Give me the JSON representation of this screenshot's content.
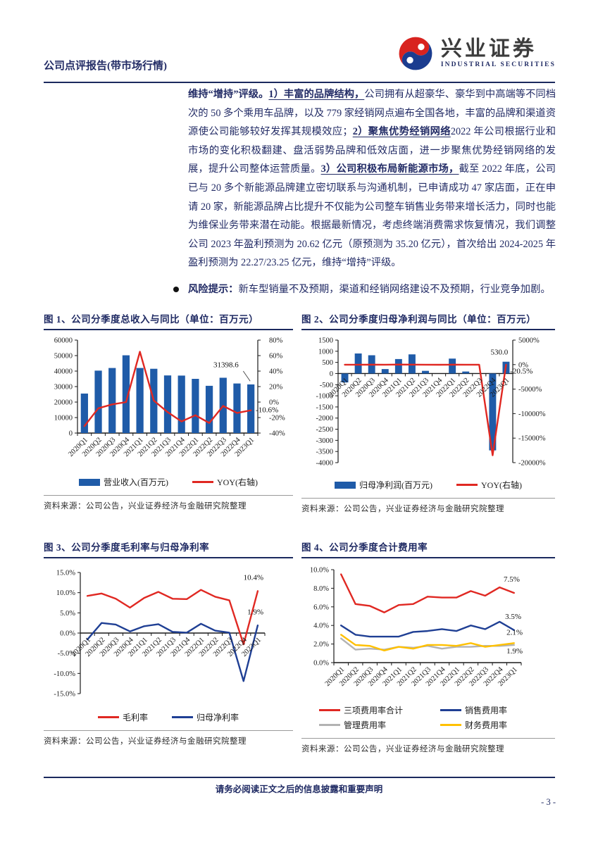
{
  "header": {
    "report_type": "公司点评报告(带市场行情)",
    "brand_cn": "兴业证券",
    "brand_en": "INDUSTRIAL SECURITIES"
  },
  "body": {
    "main_paragraph": [
      {
        "t": "维持“增持”评级。",
        "b": true
      },
      {
        "t": "1）丰富的品牌结构，",
        "b": true,
        "u": true
      },
      {
        "t": "公司拥有从超豪华、豪华到中高端等不同档次的 50 多个乘用车品牌，以及 779 家经销网点遍布全国各地，丰富的品牌和渠道资源使公司能够较好发挥其规模效应；"
      },
      {
        "t": "2）聚焦优势经销网络",
        "b": true,
        "u": true
      },
      {
        "t": "2022 年公司根据行业和市场的变化积极翻建、盘活弱势品牌和低效店面，进一步聚焦优势经销网络的发展，提升公司整体运营质量。"
      },
      {
        "t": "3）公司积极布局新能源市场，",
        "b": true,
        "u": true
      },
      {
        "t": "截至 2022 年底，公司已与 20 多个新能源品牌建立密切联系与沟通机制，已申请成功 47 家店面，正在申请 20 家，新能源品牌占比提升不仅能为公司整车销售业务带来增长活力，同时也能为维保业务带来潜在动能。根据最新情况，考虑终端消费需求恢复情况，我们调整公司 2023 年盈利预测为 20.62 亿元（原预测为 35.20 亿元），首次给出 2024-2025 年盈利预测为 22.27/23.25 亿元，维持“增持”评级。"
      }
    ],
    "risk_paragraph": [
      {
        "t": "风险提示：",
        "b": true
      },
      {
        "t": "新车型销量不及预期，渠道和经销网络建设不及预期，行业竞争加剧。"
      }
    ]
  },
  "chart_data": [
    {
      "type": "bar+line",
      "title": "图 1、公司分季度总收入与同比（单位：百万元）",
      "source": "资料来源：公司公告，兴业证券经济与金融研究院整理",
      "categories": [
        "2020Q1",
        "2020Q2",
        "2020Q3",
        "2020Q4",
        "2021Q1",
        "2021Q2",
        "2021Q3",
        "2021Q4",
        "2022Q1",
        "2022Q2",
        "2022Q3",
        "2022Q4",
        "2023Q1"
      ],
      "left_axis": {
        "min": 0,
        "max": 60000,
        "ticks": [
          "60000",
          "50000",
          "40000",
          "30000",
          "20000",
          "10000",
          "0"
        ]
      },
      "right_axis": {
        "min": -40,
        "max": 80,
        "ticks": [
          "80%",
          "60%",
          "40%",
          "20%",
          "0%",
          "-20%",
          "-40%"
        ]
      },
      "bars": {
        "name": "营业收入(百万元)",
        "color": "#1f5ba8",
        "values": [
          25500,
          40300,
          42000,
          50200,
          42000,
          41500,
          37200,
          37100,
          35000,
          30500,
          35700,
          32000,
          31398.6
        ]
      },
      "lines": [
        {
          "name": "YOY(右轴)",
          "color": "#e02822",
          "axis": "right",
          "values": [
            -31,
            -8,
            -3,
            0,
            65,
            2,
            -13,
            -25,
            -17,
            -27,
            -5,
            -14,
            -10.6
          ]
        }
      ],
      "annotations": [
        {
          "text": "31398.6",
          "xi": 9.3,
          "val": 42500,
          "axis": "left",
          "anchor": "start",
          "leader": {
            "x1i": 11.45,
            "v1": 40000,
            "x2i": 11.95,
            "v2": 33500
          }
        },
        {
          "text": "-10.6%",
          "xi": 12.35,
          "val": -13,
          "axis": "right",
          "anchor": "start"
        }
      ],
      "legend": [
        {
          "label": "营业收入(百万元)",
          "color": "#1f5ba8",
          "swatch": "bar"
        },
        {
          "label": "YOY(右轴)",
          "color": "#e02822",
          "swatch": "line"
        }
      ]
    },
    {
      "type": "bar+line",
      "title": "图 2、公司分季度归母净利润与同比（单位：百万元）",
      "source": "资料来源：公司公告，兴业证券经济与金融研究院整理",
      "categories": [
        "2020Q1",
        "2020Q2",
        "2020Q3",
        "2020Q4",
        "2021Q1",
        "2021Q2",
        "2021Q3",
        "2021Q4",
        "2022Q1",
        "2022Q2",
        "2022Q3",
        "2022Q4",
        "2023Q1"
      ],
      "left_axis": {
        "min": -4000,
        "max": 1500,
        "ticks": [
          "1500",
          "1000",
          "500",
          "0",
          "-500",
          "-1000",
          "-1500",
          "-2000",
          "-2500",
          "-3000",
          "-3500",
          "-4000"
        ]
      },
      "right_axis": {
        "min": -20000,
        "max": 5000,
        "ticks": [
          "5000%",
          "0%",
          "-5000%",
          "-10000%",
          "-15000%",
          "-20000%"
        ]
      },
      "bars": {
        "name": "归母净利润(百万元)",
        "color": "#1f5ba8",
        "values": [
          -400,
          900,
          820,
          200,
          650,
          860,
          120,
          0,
          670,
          90,
          0,
          -3450,
          530
        ]
      },
      "lines": [
        {
          "name": "YOY(右轴)",
          "color": "#e02822",
          "axis": "right",
          "values": [
            -20,
            -15,
            -10,
            -25,
            20,
            -5,
            -15,
            -30,
            -10,
            -20,
            -25,
            -18500,
            -20.5
          ]
        }
      ],
      "annotations": [
        {
          "text": "530.0",
          "xi": 11.5,
          "val": 850,
          "axis": "left",
          "anchor": "middle"
        },
        {
          "text": "-20.5%",
          "xi": 12.3,
          "val": -1800,
          "axis": "right",
          "anchor": "start"
        }
      ],
      "legend": [
        {
          "label": "归母净利润(百万元)",
          "color": "#1f5ba8",
          "swatch": "bar"
        },
        {
          "label": "YOY(右轴)",
          "color": "#e02822",
          "swatch": "line"
        }
      ]
    },
    {
      "type": "line",
      "title": "图 3、公司分季度毛利率与归母净利率",
      "source": "资料来源：公司公告，兴业证券经济与金融研究院整理",
      "categories": [
        "2020Q1",
        "2020Q2",
        "2020Q3",
        "2020Q4",
        "2021Q1",
        "2021Q2",
        "2021Q3",
        "2021Q4",
        "2022Q1",
        "2022Q2",
        "2022Q3",
        "2022Q4",
        "2023Q1"
      ],
      "left_axis": {
        "min": -15,
        "max": 15,
        "ticks": [
          "15.0%",
          "10.0%",
          "5.0%",
          "0.0%",
          "-5.0%",
          "-10.0%",
          "-15.0%"
        ]
      },
      "lines": [
        {
          "name": "毛利率",
          "color": "#e02822",
          "axis": "left",
          "values": [
            9.2,
            9.8,
            8.5,
            6.3,
            8.7,
            10.2,
            8.5,
            8.4,
            10.7,
            9.0,
            8.1,
            -2.8,
            10.4
          ]
        },
        {
          "name": "归母净利率",
          "color": "#1f3f94",
          "axis": "left",
          "values": [
            -1.6,
            2.5,
            2.1,
            0.4,
            1.7,
            2.2,
            0.3,
            0.1,
            2.3,
            0.6,
            0.1,
            -11.9,
            1.9
          ]
        }
      ],
      "annotations": [
        {
          "text": "10.4%",
          "xi": 12.4,
          "val": 13.2,
          "axis": "left",
          "anchor": "end"
        },
        {
          "text": "1.9%",
          "xi": 12.4,
          "val": 4.6,
          "axis": "left",
          "anchor": "end"
        }
      ],
      "legend": [
        {
          "label": "毛利率",
          "color": "#e02822",
          "swatch": "line"
        },
        {
          "label": "归母净利率",
          "color": "#1f3f94",
          "swatch": "line"
        }
      ]
    },
    {
      "type": "line",
      "title": "图 4、公司分季度合计费用率",
      "source": "资料来源：公司公告，兴业证券经济与金融研究院整理",
      "categories": [
        "2020Q1",
        "2020Q2",
        "2020Q3",
        "2020Q4",
        "2021Q1",
        "2021Q2",
        "2021Q3",
        "2021Q4",
        "2022Q1",
        "2022Q2",
        "2022Q3",
        "2022Q4",
        "2023Q1"
      ],
      "left_axis": {
        "min": 0,
        "max": 10,
        "ticks": [
          "10.0%",
          "8.0%",
          "6.0%",
          "4.0%",
          "2.0%",
          "0.0%"
        ]
      },
      "lines": [
        {
          "name": "三项费用率合计",
          "color": "#e02822",
          "axis": "left",
          "values": [
            9.5,
            6.3,
            6.1,
            5.4,
            6.2,
            6.3,
            7.1,
            7.0,
            7.0,
            7.7,
            7.2,
            8.1,
            7.5
          ]
        },
        {
          "name": "销售费用率",
          "color": "#1f3f94",
          "axis": "left",
          "values": [
            4.0,
            3.0,
            2.8,
            2.8,
            2.8,
            3.3,
            3.4,
            3.6,
            3.4,
            4.0,
            3.6,
            4.4,
            3.5
          ]
        },
        {
          "name": "管理费用率",
          "color": "#b3b3b3",
          "axis": "left",
          "values": [
            2.6,
            1.4,
            1.5,
            1.4,
            1.7,
            1.6,
            1.8,
            1.5,
            1.7,
            1.7,
            1.8,
            1.8,
            1.9
          ]
        },
        {
          "name": "财务费用率",
          "color": "#ffc000",
          "axis": "left",
          "values": [
            3.0,
            1.9,
            1.8,
            1.3,
            1.7,
            1.5,
            1.9,
            1.9,
            1.8,
            2.1,
            1.7,
            1.9,
            2.1
          ]
        }
      ],
      "annotations": [
        {
          "text": "7.5%",
          "xi": 12.4,
          "val": 8.7,
          "axis": "left",
          "anchor": "end"
        },
        {
          "text": "3.5%",
          "xi": 12.5,
          "val": 4.7,
          "axis": "left",
          "anchor": "end"
        },
        {
          "text": "2.1%",
          "xi": 12.6,
          "val": 3.0,
          "axis": "left",
          "anchor": "end"
        },
        {
          "text": "1.9%",
          "xi": 12.6,
          "val": 1.0,
          "axis": "left",
          "anchor": "end"
        }
      ],
      "legend": [
        {
          "label": "三项费用率合计",
          "color": "#e02822",
          "swatch": "line"
        },
        {
          "label": "销售费用率",
          "color": "#1f3f94",
          "swatch": "line"
        },
        {
          "label": "管理费用率",
          "color": "#b3b3b3",
          "swatch": "line"
        },
        {
          "label": "财务费用率",
          "color": "#ffc000",
          "swatch": "line"
        }
      ]
    }
  ],
  "footer": {
    "disclaimer": "请务必阅读正文之后的信息披露和重要声明",
    "page": "- 3 -"
  },
  "colors": {
    "navy_text": "#232c66",
    "rule_navy": "#1b2a5e",
    "bar_blue": "#1f5ba8",
    "line_red": "#e02822",
    "line_navy": "#1f3f94",
    "line_gray": "#b3b3b3",
    "line_yellow": "#ffc000",
    "logo_red": "#d8231f",
    "logo_blue": "#1b3c8f"
  }
}
